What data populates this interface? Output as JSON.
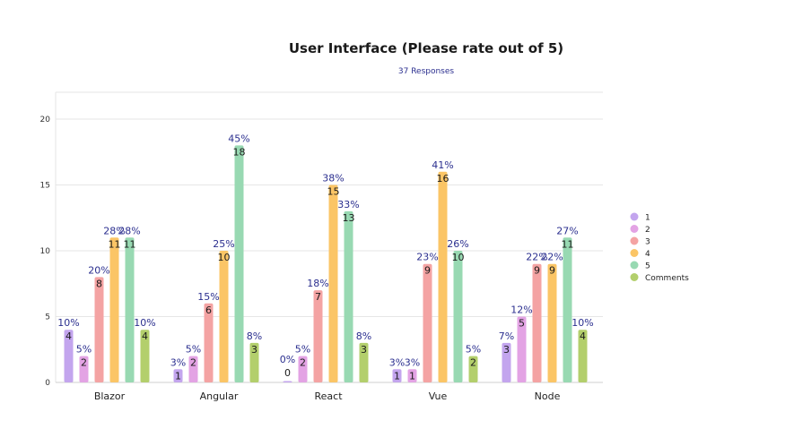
{
  "chart_data": {
    "type": "bar",
    "title": "User Interface (Please rate out of 5)",
    "subtitle": "37 Responses",
    "xlabel": "",
    "ylabel": "",
    "ylim": [
      0,
      22
    ],
    "yticks": [
      0,
      5,
      10,
      15,
      20
    ],
    "grid": true,
    "legend_position": "right",
    "categories": [
      "Blazor",
      "Angular",
      "React",
      "Vue",
      "Node"
    ],
    "series": [
      {
        "name": "1",
        "color": "#c3a5ee",
        "values": [
          4,
          1,
          0,
          1,
          3
        ],
        "percent_labels": [
          "10%",
          "3%",
          "0%",
          "3%",
          "7%"
        ]
      },
      {
        "name": "2",
        "color": "#e3a3e4",
        "values": [
          2,
          2,
          2,
          1,
          5
        ],
        "percent_labels": [
          "5%",
          "5%",
          "5%",
          "3%",
          "12%"
        ]
      },
      {
        "name": "3",
        "color": "#f4a3a3",
        "values": [
          8,
          6,
          7,
          9,
          9
        ],
        "percent_labels": [
          "20%",
          "15%",
          "18%",
          "23%",
          "22%"
        ]
      },
      {
        "name": "4",
        "color": "#fbc566",
        "values": [
          11,
          10,
          15,
          16,
          9
        ],
        "percent_labels": [
          "28%",
          "25%",
          "38%",
          "41%",
          "22%"
        ]
      },
      {
        "name": "5",
        "color": "#98d9b2",
        "values": [
          11,
          18,
          13,
          10,
          11
        ],
        "percent_labels": [
          "28%",
          "45%",
          "33%",
          "26%",
          "27%"
        ]
      },
      {
        "name": "Comments",
        "color": "#b3cf6c",
        "values": [
          4,
          3,
          3,
          2,
          4
        ],
        "percent_labels": [
          "10%",
          "8%",
          "8%",
          "5%",
          "10%"
        ]
      }
    ]
  }
}
